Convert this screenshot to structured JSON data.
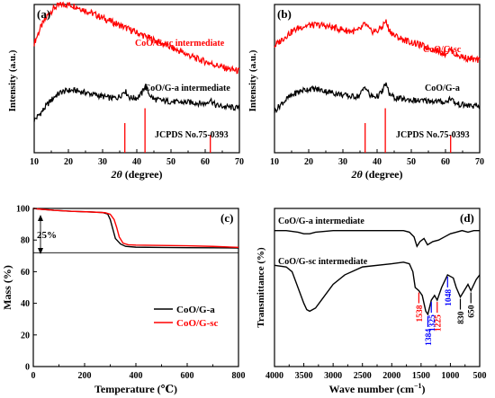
{
  "chart_data": [
    {
      "panel": "(a)",
      "type": "line",
      "xlabel_italic": "2θ",
      "xlabel_rest": " (degree)",
      "ylabel": "Intensity (a.u.)",
      "xlim": [
        10,
        70
      ],
      "xticks": [
        "10",
        "20",
        "30",
        "40",
        "50",
        "60",
        "70"
      ],
      "show_y_ticks": false,
      "colors": {
        "red": "#ff0000",
        "black": "#000000"
      },
      "series": [
        {
          "name": "CoO/G-sc intermediate",
          "color": "#ff0000",
          "x": [
            10,
            12,
            14,
            16,
            18,
            20,
            22,
            24,
            26,
            28,
            30,
            34,
            38,
            42,
            46,
            50,
            54,
            58,
            62,
            66,
            70
          ],
          "y": [
            0.74,
            0.85,
            0.93,
            0.98,
            1.0,
            1.0,
            0.99,
            0.97,
            0.95,
            0.93,
            0.91,
            0.87,
            0.83,
            0.79,
            0.75,
            0.71,
            0.67,
            0.63,
            0.6,
            0.57,
            0.55
          ]
        },
        {
          "name": "CoO/G-a intermediate",
          "color": "#000000",
          "x": [
            10,
            12,
            14,
            16,
            18,
            20,
            22,
            24,
            26,
            28,
            30,
            32,
            34,
            35,
            36.5,
            38,
            40,
            41.5,
            42.5,
            43.5,
            45,
            48,
            52,
            56,
            60,
            61.5,
            63,
            66,
            70
          ],
          "y": [
            0.22,
            0.27,
            0.33,
            0.38,
            0.41,
            0.42,
            0.42,
            0.41,
            0.4,
            0.39,
            0.38,
            0.37,
            0.37,
            0.38,
            0.42,
            0.37,
            0.37,
            0.4,
            0.46,
            0.4,
            0.36,
            0.35,
            0.34,
            0.34,
            0.33,
            0.36,
            0.32,
            0.31,
            0.3
          ]
        }
      ],
      "reference_label": "JCPDS No.75-0393",
      "reference_lines": [
        {
          "x": 36.5,
          "h": 0.2
        },
        {
          "x": 42.4,
          "h": 0.3
        },
        {
          "x": 61.5,
          "h": 0.12
        }
      ]
    },
    {
      "panel": "(b)",
      "type": "line",
      "xlabel_italic": "2θ",
      "xlabel_rest": " (degree)",
      "ylabel": "Intensity (a.u.)",
      "xlim": [
        10,
        70
      ],
      "xticks": [
        "10",
        "20",
        "30",
        "40",
        "50",
        "60",
        "70"
      ],
      "show_y_ticks": false,
      "series": [
        {
          "name": "CoO/G-sc",
          "color": "#ff0000",
          "x": [
            10,
            12,
            14,
            16,
            18,
            20,
            22,
            24,
            26,
            28,
            30,
            32,
            34,
            35,
            36.5,
            38,
            40,
            41.5,
            42.5,
            43.5,
            45,
            48,
            52,
            56,
            60,
            61.5,
            63,
            66,
            70
          ],
          "y": [
            0.72,
            0.76,
            0.8,
            0.83,
            0.85,
            0.86,
            0.86,
            0.86,
            0.85,
            0.84,
            0.83,
            0.82,
            0.82,
            0.83,
            0.87,
            0.82,
            0.82,
            0.85,
            0.89,
            0.83,
            0.79,
            0.76,
            0.73,
            0.7,
            0.67,
            0.7,
            0.66,
            0.64,
            0.62
          ]
        },
        {
          "name": "CoO/G-a",
          "color": "#000000",
          "x": [
            10,
            12,
            14,
            16,
            18,
            20,
            22,
            24,
            26,
            28,
            30,
            32,
            34,
            35,
            36.5,
            38,
            40,
            41.5,
            42.5,
            43.5,
            45,
            48,
            52,
            56,
            60,
            61.5,
            63,
            66,
            70
          ],
          "y": [
            0.28,
            0.33,
            0.37,
            0.4,
            0.42,
            0.43,
            0.43,
            0.42,
            0.41,
            0.4,
            0.39,
            0.38,
            0.38,
            0.39,
            0.45,
            0.38,
            0.38,
            0.41,
            0.47,
            0.4,
            0.37,
            0.36,
            0.35,
            0.35,
            0.34,
            0.37,
            0.33,
            0.32,
            0.31
          ]
        }
      ],
      "reference_label": "JCPDS No.75-0393",
      "reference_lines": [
        {
          "x": 36.5,
          "h": 0.2
        },
        {
          "x": 42.4,
          "h": 0.3
        },
        {
          "x": 61.5,
          "h": 0.12
        }
      ]
    },
    {
      "panel": "(c)",
      "type": "line",
      "xlabel": "Temperature (℃)",
      "ylabel": "Mass (%)",
      "xlim": [
        0,
        800
      ],
      "ylim": [
        0,
        100
      ],
      "xticks": [
        "0",
        "200",
        "400",
        "600",
        "800"
      ],
      "yticks": [
        "0",
        "20",
        "40",
        "60",
        "80",
        "100"
      ],
      "annotation": "25%",
      "legend_position": "bottom-right",
      "series": [
        {
          "name": "CoO/G-a",
          "color": "#000000",
          "x": [
            0,
            30,
            80,
            150,
            220,
            270,
            290,
            300,
            310,
            320,
            340,
            360,
            400,
            500,
            600,
            700,
            800
          ],
          "y": [
            100,
            99.5,
            98.8,
            98.2,
            97.8,
            97.4,
            96.5,
            93,
            87,
            81,
            77.5,
            76,
            75.5,
            75.3,
            75.2,
            75.1,
            75.0
          ]
        },
        {
          "name": "CoO/G-sc",
          "color": "#ff0000",
          "x": [
            0,
            30,
            80,
            150,
            220,
            280,
            300,
            315,
            325,
            335,
            350,
            370,
            400,
            500,
            600,
            700,
            800
          ],
          "y": [
            100,
            99.5,
            98.8,
            98.2,
            97.8,
            97.3,
            96.3,
            93,
            88,
            82,
            78,
            77,
            76.8,
            76.6,
            76.4,
            76.0,
            75.4
          ]
        }
      ]
    },
    {
      "panel": "(d)",
      "type": "line",
      "xlabel": "Wave number (cm",
      "xlabel_sup": "−1",
      "xlabel_end": ")",
      "ylabel": "Transmittance (%)",
      "xlim": [
        4000,
        500
      ],
      "xticks": [
        "4000",
        "3500",
        "3000",
        "2500",
        "2000",
        "1500",
        "1000",
        "500"
      ],
      "show_y_ticks": false,
      "series": [
        {
          "name": "CoO/G-a intermediate",
          "color": "#000000",
          "x": [
            4000,
            3800,
            3600,
            3500,
            3400,
            3300,
            3000,
            2500,
            2000,
            1800,
            1700,
            1620,
            1570,
            1520,
            1450,
            1390,
            1300,
            1200,
            1100,
            1000,
            900,
            800,
            700,
            600,
            500
          ],
          "y": [
            0.86,
            0.86,
            0.85,
            0.84,
            0.84,
            0.85,
            0.86,
            0.86,
            0.86,
            0.86,
            0.85,
            0.82,
            0.76,
            0.79,
            0.81,
            0.77,
            0.79,
            0.8,
            0.82,
            0.84,
            0.85,
            0.86,
            0.85,
            0.86,
            0.86
          ]
        },
        {
          "name": "CoO/G-sc intermediate",
          "color": "#000000",
          "x": [
            4000,
            3800,
            3700,
            3600,
            3500,
            3450,
            3400,
            3300,
            3200,
            3000,
            2800,
            2500,
            2000,
            1800,
            1700,
            1640,
            1600,
            1538,
            1480,
            1420,
            1384,
            1325,
            1270,
            1225,
            1150,
            1048,
            950,
            900,
            830,
            780,
            700,
            650,
            560,
            500
          ],
          "y": [
            0.64,
            0.63,
            0.6,
            0.5,
            0.4,
            0.36,
            0.35,
            0.37,
            0.42,
            0.52,
            0.58,
            0.63,
            0.65,
            0.66,
            0.65,
            0.6,
            0.5,
            0.48,
            0.45,
            0.35,
            0.33,
            0.42,
            0.45,
            0.42,
            0.5,
            0.58,
            0.56,
            0.5,
            0.44,
            0.47,
            0.52,
            0.48,
            0.55,
            0.58
          ]
        }
      ],
      "peak_labels": [
        {
          "text": "1538",
          "x": 1538,
          "color": "#ff0000"
        },
        {
          "text": "1384",
          "x": 1384,
          "color": "#0000ff"
        },
        {
          "text": "1325",
          "x": 1325,
          "color": "#0000ff"
        },
        {
          "text": "1225",
          "x": 1225,
          "color": "#ff0000"
        },
        {
          "text": "1048",
          "x": 1048,
          "color": "#0000ff"
        },
        {
          "text": "830",
          "x": 830,
          "color": "#000000"
        },
        {
          "text": "650",
          "x": 650,
          "color": "#000000"
        }
      ]
    }
  ]
}
